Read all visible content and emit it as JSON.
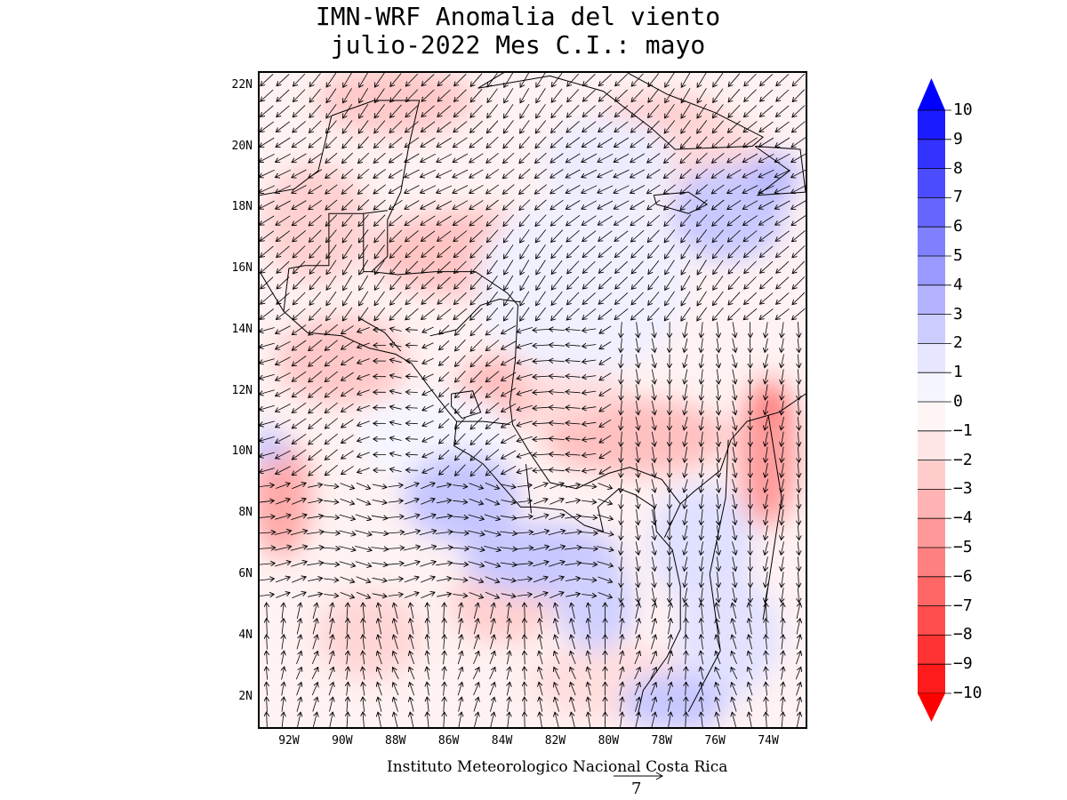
{
  "title_line1": "IMN-WRF Anomalia del viento",
  "title_line2": "julio-2022 Mes C.I.: mayo",
  "credit": "Instituto Meteorologico Nacional Costa Rica",
  "reference_vector_value": "7",
  "lat_labels": [
    "22N",
    "20N",
    "18N",
    "16N",
    "14N",
    "12N",
    "10N",
    "8N",
    "6N",
    "4N",
    "2N"
  ],
  "lat_values": [
    22,
    20,
    18,
    16,
    14,
    12,
    10,
    8,
    6,
    4,
    2
  ],
  "lon_labels": [
    "92W",
    "90W",
    "88W",
    "86W",
    "84W",
    "82W",
    "80W",
    "78W",
    "76W",
    "74W"
  ],
  "lon_values": [
    -92,
    -90,
    -88,
    -86,
    -84,
    -82,
    -80,
    -78,
    -76,
    -74
  ],
  "map_extent": {
    "lon_min": -93.1,
    "lon_max": -72.6,
    "lat_min": 1.0,
    "lat_max": 22.4
  },
  "colorbar": {
    "labels": [
      "10",
      "9",
      "8",
      "7",
      "6",
      "5",
      "4",
      "3",
      "2",
      "1",
      "0",
      "−1",
      "−2",
      "−3",
      "−4",
      "−5",
      "−6",
      "−7",
      "−8",
      "−9",
      "−10"
    ],
    "colors": [
      "#1b1bff",
      "#3333ff",
      "#4c4cff",
      "#6666ff",
      "#8080ff",
      "#9999ff",
      "#b3b3ff",
      "#ccccff",
      "#e6e6ff",
      "#f5f5ff",
      "#fff5f5",
      "#ffe6e6",
      "#ffcccc",
      "#ffb3b3",
      "#ff9999",
      "#ff8080",
      "#ff6666",
      "#ff4c4c",
      "#ff3333",
      "#ff1b1b"
    ],
    "max_color": "#0000ff",
    "min_color": "#ff0000"
  }
}
